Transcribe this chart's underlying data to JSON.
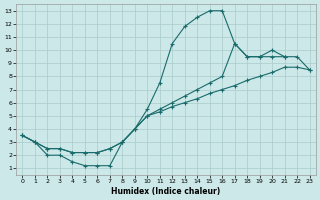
{
  "title": "",
  "xlabel": "Humidex (Indice chaleur)",
  "ylabel": "",
  "bg_color": "#cce8e8",
  "line_color": "#1a6b6b",
  "grid_color": "#aacccc",
  "xlim": [
    -0.5,
    23.5
  ],
  "ylim": [
    0.5,
    13.5
  ],
  "xticks": [
    0,
    1,
    2,
    3,
    4,
    5,
    6,
    7,
    8,
    9,
    10,
    11,
    12,
    13,
    14,
    15,
    16,
    17,
    18,
    19,
    20,
    21,
    22,
    23
  ],
  "yticks": [
    1,
    2,
    3,
    4,
    5,
    6,
    7,
    8,
    9,
    10,
    11,
    12,
    13
  ],
  "line1_x": [
    0,
    1,
    2,
    3,
    4,
    5,
    6,
    7,
    8,
    9,
    10,
    11,
    12,
    13,
    14,
    15,
    16,
    17,
    18,
    19,
    20,
    21
  ],
  "line1_y": [
    3.5,
    3.0,
    2.0,
    2.0,
    1.5,
    1.2,
    1.2,
    1.2,
    3.0,
    4.0,
    5.5,
    7.5,
    10.5,
    11.8,
    12.5,
    13.0,
    13.0,
    10.5,
    9.5,
    9.5,
    9.5,
    9.5
  ],
  "line2_x": [
    0,
    1,
    2,
    3,
    4,
    5,
    6,
    7,
    8,
    9,
    10,
    11,
    12,
    13,
    14,
    15,
    16,
    17,
    18,
    19,
    20,
    21,
    22,
    23
  ],
  "line2_y": [
    3.5,
    3.0,
    2.5,
    2.5,
    2.2,
    2.2,
    2.2,
    2.5,
    3.0,
    4.0,
    5.0,
    5.5,
    6.0,
    6.5,
    7.0,
    7.5,
    8.0,
    10.5,
    9.5,
    9.5,
    10.0,
    9.5,
    9.5,
    8.5
  ],
  "line3_x": [
    0,
    1,
    2,
    3,
    4,
    5,
    6,
    7,
    8,
    9,
    10,
    11,
    12,
    13,
    14,
    15,
    16,
    17,
    18,
    19,
    20,
    21,
    22,
    23
  ],
  "line3_y": [
    3.5,
    3.0,
    2.5,
    2.5,
    2.2,
    2.2,
    2.2,
    2.5,
    3.0,
    4.0,
    5.0,
    5.3,
    5.7,
    6.0,
    6.3,
    6.7,
    7.0,
    7.3,
    7.7,
    8.0,
    8.3,
    8.7,
    8.7,
    8.5
  ]
}
